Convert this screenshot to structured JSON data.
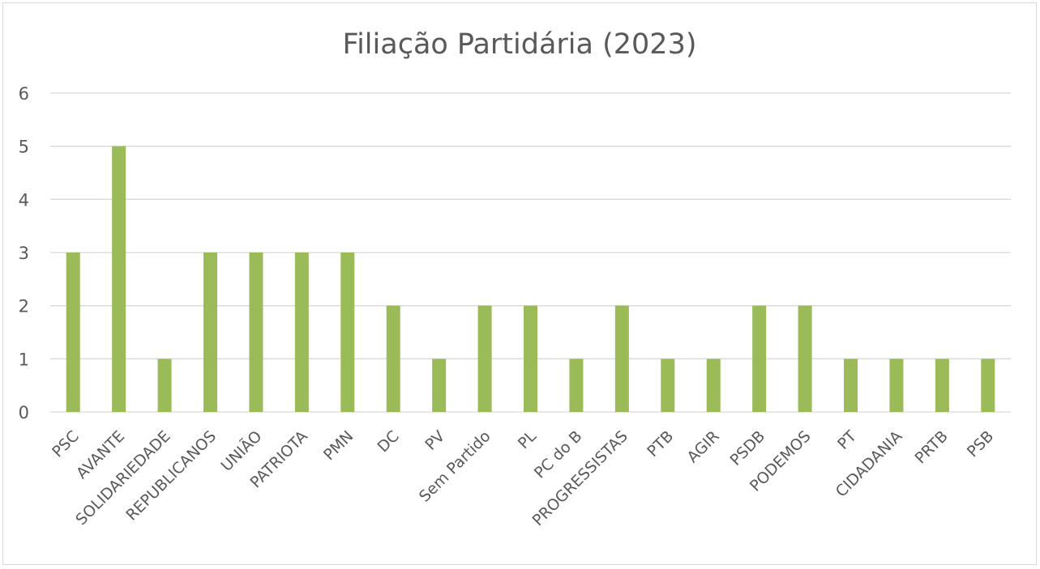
{
  "chart_data": {
    "type": "bar",
    "title": "Filiação Partidária (2023)",
    "xlabel": "",
    "ylabel": "",
    "ylim": [
      0,
      6
    ],
    "yticks": [
      "0",
      "1",
      "2",
      "3",
      "4",
      "5",
      "6"
    ],
    "grid": true,
    "legend": "none",
    "bar_color": "#9bbb59",
    "categories": [
      "PSC",
      "AVANTE",
      "SOLIDARIEDADE",
      "REPUBLICANOS",
      "UNIÃO",
      "PATRIOTA",
      "PMN",
      "DC",
      "PV",
      "Sem Partido",
      "PL",
      "PC do B",
      "PROGRESSISTAS",
      "PTB",
      "AGIR",
      "PSDB",
      "PODEMOS",
      "PT",
      "CIDADANIA",
      "PRTB",
      "PSB"
    ],
    "values": [
      3,
      5,
      1,
      3,
      3,
      3,
      3,
      2,
      1,
      2,
      2,
      1,
      2,
      1,
      1,
      2,
      2,
      1,
      1,
      1,
      1
    ]
  }
}
